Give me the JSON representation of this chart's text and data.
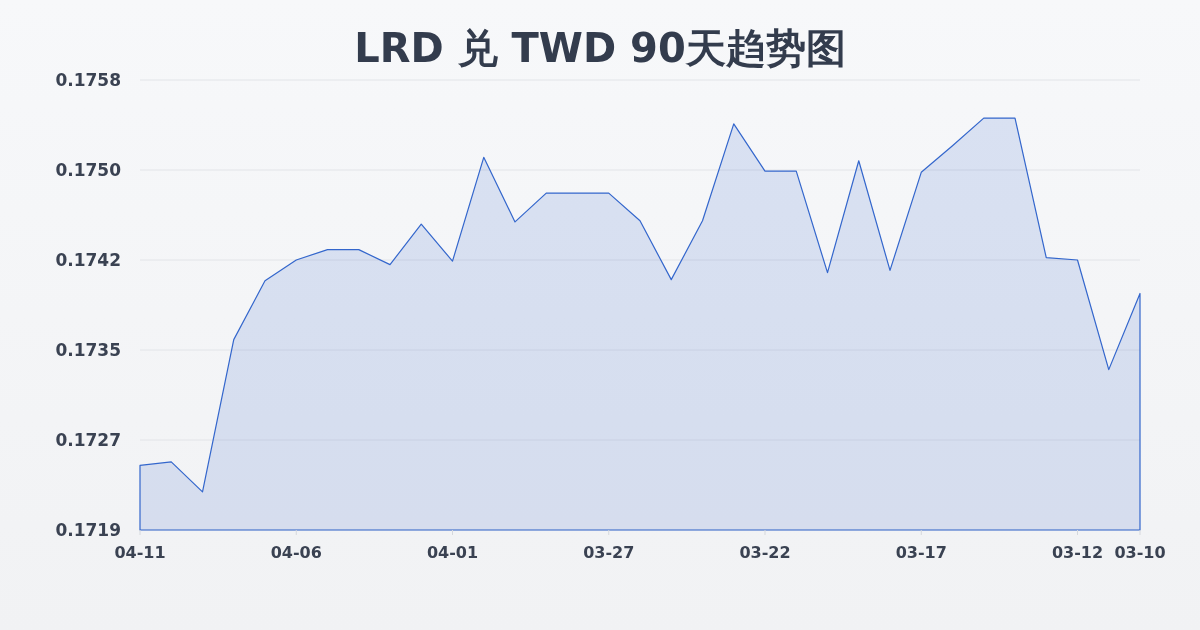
{
  "chart_data": {
    "type": "area",
    "title": "LRD 兑 TWD 90天趋势图",
    "categories": [
      "04-11",
      null,
      null,
      null,
      null,
      "04-06",
      null,
      null,
      null,
      null,
      "04-01",
      null,
      null,
      null,
      null,
      "03-27",
      null,
      null,
      null,
      null,
      "03-22",
      null,
      null,
      null,
      null,
      "03-17",
      null,
      null,
      null,
      null,
      "03-12",
      null,
      "03-10"
    ],
    "series": [
      {
        "color": "#3366cc",
        "values": [
          0.17246,
          0.17249,
          0.17223,
          0.17355,
          0.17406,
          0.17424,
          0.17433,
          0.17433,
          0.1742,
          0.17455,
          0.17423,
          0.17513,
          0.17457,
          0.17482,
          0.17482,
          0.17482,
          0.17458,
          0.17407,
          0.17458,
          0.17542,
          0.17501,
          0.17501,
          0.17413,
          0.1751,
          0.17415,
          0.175,
          0.17523,
          0.17547,
          0.17547,
          0.17426,
          0.17424,
          0.17329,
          0.17395
        ]
      }
    ],
    "ylim": [
      0.1719,
      0.1758
    ],
    "yticks": [
      0.1719,
      {
        "value": 0.17268,
        "label": "0.1727"
      },
      {
        "value": 0.17346,
        "label": "0.1735"
      },
      {
        "value": 0.17424,
        "label": "0.1742"
      },
      {
        "value": 0.17502,
        "label": "0.1750"
      },
      0.1758
    ],
    "grid": "y"
  }
}
